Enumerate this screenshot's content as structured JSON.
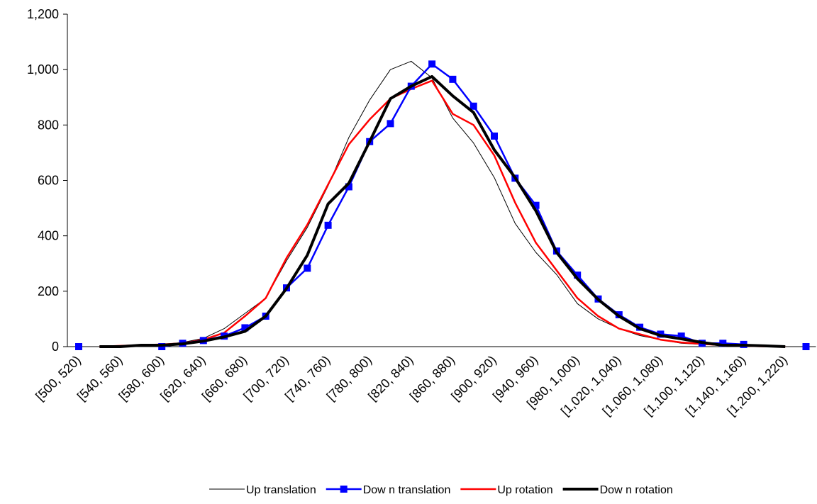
{
  "chart_data": {
    "type": "line",
    "categories": [
      "[500, 520)",
      null,
      "[540, 560)",
      null,
      "[580, 600)",
      null,
      "[620, 640)",
      null,
      "[660, 680)",
      null,
      "[700, 720)",
      null,
      "[740, 760)",
      null,
      "[780, 800)",
      null,
      "[820, 840)",
      null,
      "[860, 880)",
      null,
      "[900, 920)",
      null,
      "[940, 960)",
      null,
      "[980, 1,000)",
      null,
      "[1,020, 1,040)",
      null,
      "[1,060, 1,080)",
      null,
      "[1,100, 1,120)",
      null,
      "[1,140, 1,160)",
      null,
      "[1,200, 1,220)",
      null
    ],
    "series": [
      {
        "name": "Up translation",
        "color": "#000000",
        "width": 1,
        "marker": false,
        "values": [
          null,
          0,
          2,
          5,
          8,
          15,
          30,
          65,
          120,
          175,
          310,
          430,
          580,
          755,
          890,
          1000,
          1030,
          970,
          825,
          735,
          610,
          445,
          340,
          260,
          155,
          100,
          65,
          40,
          25,
          12,
          8,
          4,
          2,
          1,
          0,
          null
        ]
      },
      {
        "name": "Dow n translation",
        "color": "#0000ff",
        "width": 2.5,
        "marker": true,
        "values": [
          0,
          null,
          null,
          null,
          0,
          12,
          22,
          38,
          68,
          110,
          212,
          283,
          438,
          577,
          740,
          805,
          940,
          1020,
          965,
          868,
          760,
          608,
          510,
          345,
          258,
          172,
          115,
          70,
          45,
          38,
          12,
          12,
          8,
          null,
          null,
          0
        ]
      },
      {
        "name": "Up rotation",
        "color": "#ff0000",
        "width": 2.5,
        "marker": false,
        "values": [
          null,
          0,
          3,
          5,
          8,
          12,
          25,
          50,
          110,
          175,
          320,
          440,
          585,
          730,
          820,
          895,
          930,
          960,
          840,
          800,
          690,
          520,
          375,
          275,
          175,
          110,
          65,
          45,
          25,
          15,
          10,
          5,
          3,
          1,
          0,
          null
        ]
      },
      {
        "name": "Dow n rotation",
        "color": "#000000",
        "width": 4,
        "marker": false,
        "values": [
          null,
          0,
          0,
          5,
          5,
          10,
          20,
          35,
          55,
          110,
          210,
          330,
          515,
          590,
          740,
          895,
          940,
          975,
          905,
          845,
          710,
          610,
          490,
          340,
          245,
          170,
          110,
          65,
          40,
          28,
          15,
          5,
          5,
          3,
          0,
          null
        ]
      }
    ],
    "ylim": [
      0,
      1200
    ],
    "yticks": [
      0,
      200,
      400,
      600,
      800,
      {
        "value": 1000,
        "label": "1,000"
      },
      {
        "value": 1200,
        "label": "1,200"
      }
    ],
    "legend": "bottom"
  }
}
